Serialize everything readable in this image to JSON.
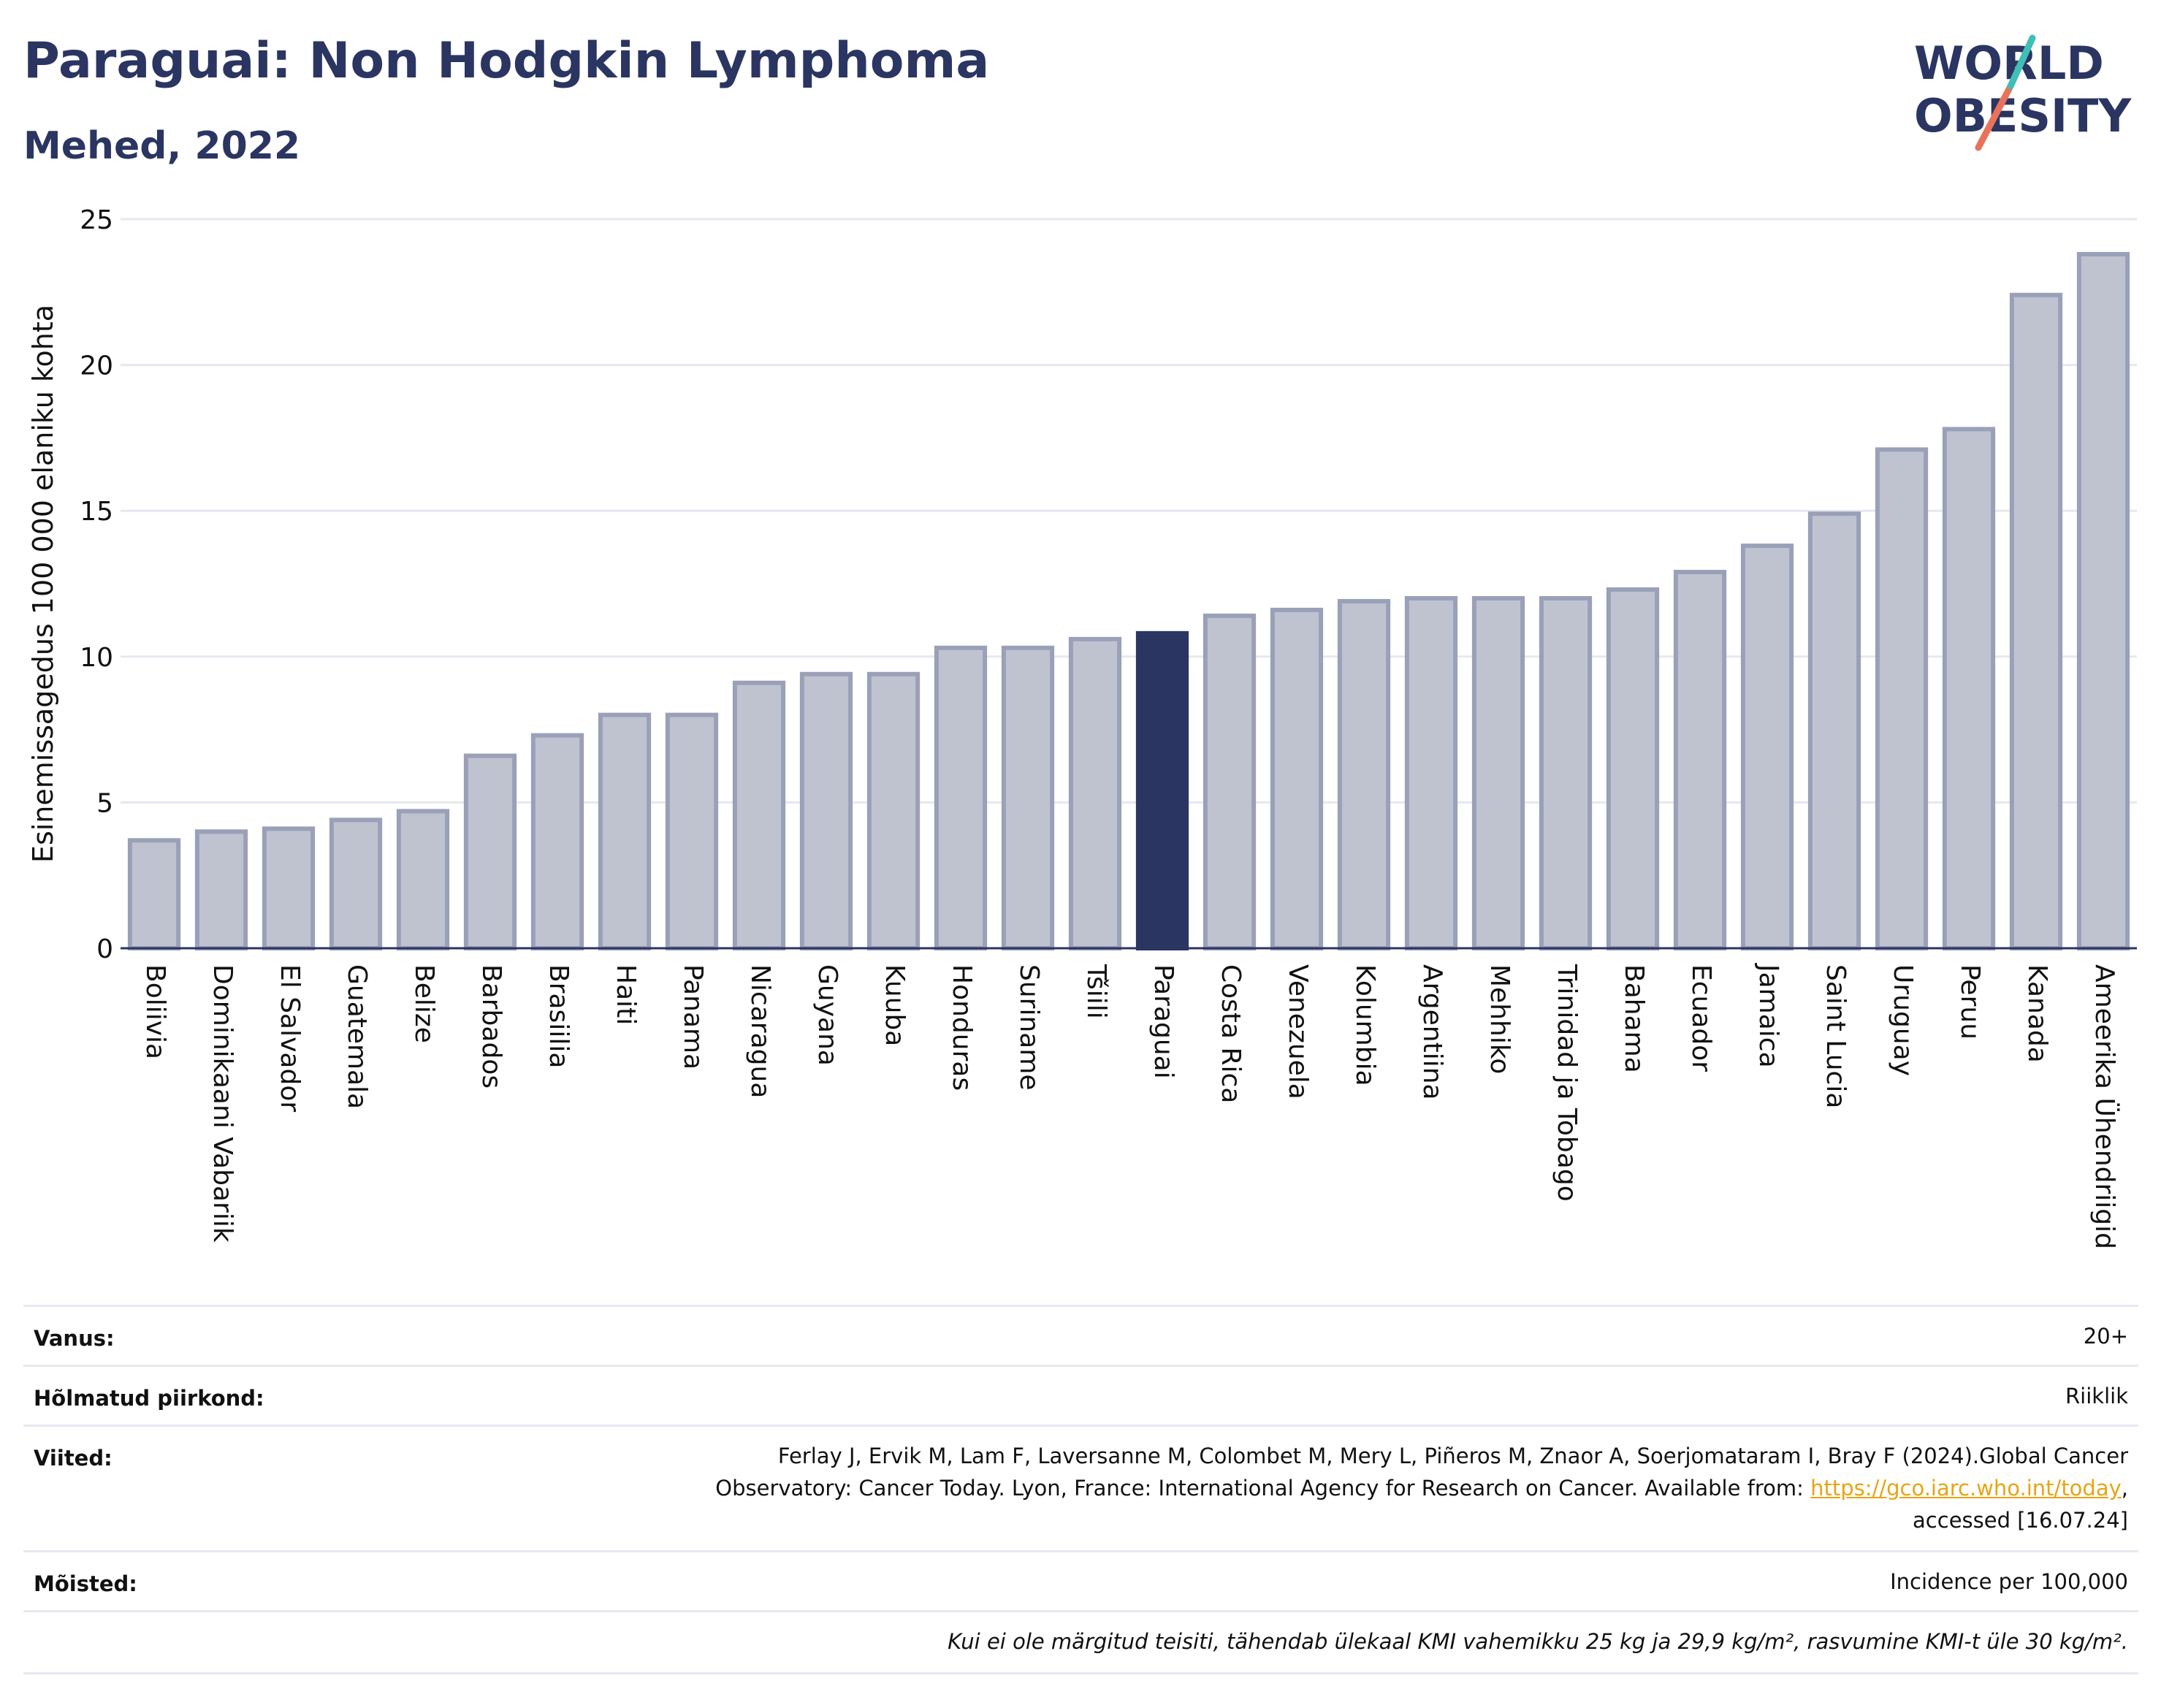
{
  "header": {
    "title": "Paraguai: Non Hodgkin Lymphoma",
    "subtitle": "Mehed, 2022",
    "logo_text": [
      "WORLD",
      "OBESITY"
    ]
  },
  "colors": {
    "bar_default": "#bfc3d0",
    "bar_default_stroke": "#9aa0b8",
    "bar_highlight": "#2b3562",
    "text": "#2b3562",
    "grid": "#e6e8f0",
    "link": "#e8a415",
    "logo_teal": "#3fbfb5",
    "logo_coral": "#e8735a"
  },
  "chart_data": {
    "type": "bar",
    "ylabel": "Esinemissagedus 100 000 elaniku kohta",
    "ylim": [
      0,
      25
    ],
    "yticks": [
      0,
      5,
      10,
      15,
      20,
      25
    ],
    "grid": true,
    "highlight": "Paraguai",
    "categories": [
      "Boliivia",
      "Dominikaani Vabariik",
      "El Salvador",
      "Guatemala",
      "Belize",
      "Barbados",
      "Brasiilia",
      "Haiti",
      "Panama",
      "Nicaragua",
      "Guyana",
      "Kuuba",
      "Honduras",
      "Suriname",
      "Tšiili",
      "Paraguai",
      "Costa Rica",
      "Venezuela",
      "Kolumbia",
      "Argentiina",
      "Mehhiko",
      "Trinidad ja Tobago",
      "Bahama",
      "Ecuador",
      "Jamaica",
      "Saint Lucia",
      "Uruguay",
      "Peruu",
      "Kanada",
      "Ameerika Ühendriigid"
    ],
    "values": [
      3.7,
      4.0,
      4.1,
      4.4,
      4.7,
      6.6,
      7.3,
      8.0,
      8.0,
      9.1,
      9.4,
      9.4,
      10.3,
      10.3,
      10.6,
      10.8,
      11.4,
      11.6,
      11.9,
      12.0,
      12.0,
      12.0,
      12.3,
      12.9,
      13.8,
      14.9,
      17.1,
      17.8,
      22.4,
      23.8
    ]
  },
  "meta": {
    "age_label": "Vanus:",
    "age_value": "20+",
    "region_label": "Hõlmatud piirkond:",
    "region_value": "Riiklik",
    "refs_label": "Viited:",
    "refs_line1": "Ferlay J, Ervik M, Lam F, Laversanne M, Colombet M, Mery L, Piñeros M, Znaor A, Soerjomataram I, Bray F (2024).Global Cancer",
    "refs_line2_pre": "Observatory: Cancer Today. Lyon, France: International Agency for Research on Cancer. Available from: ",
    "refs_link": "https://gco.iarc.who.int/today",
    "refs_line2_post": ",",
    "refs_line3": "accessed [16.07.24]",
    "defs_label": "Mõisted:",
    "defs_value": "Incidence per 100,000",
    "note": "Kui ei ole märgitud teisiti, tähendab ülekaal KMI vahemikku 25 kg ja 29,9 kg/m², rasvumine KMI-t üle 30 kg/m²."
  }
}
